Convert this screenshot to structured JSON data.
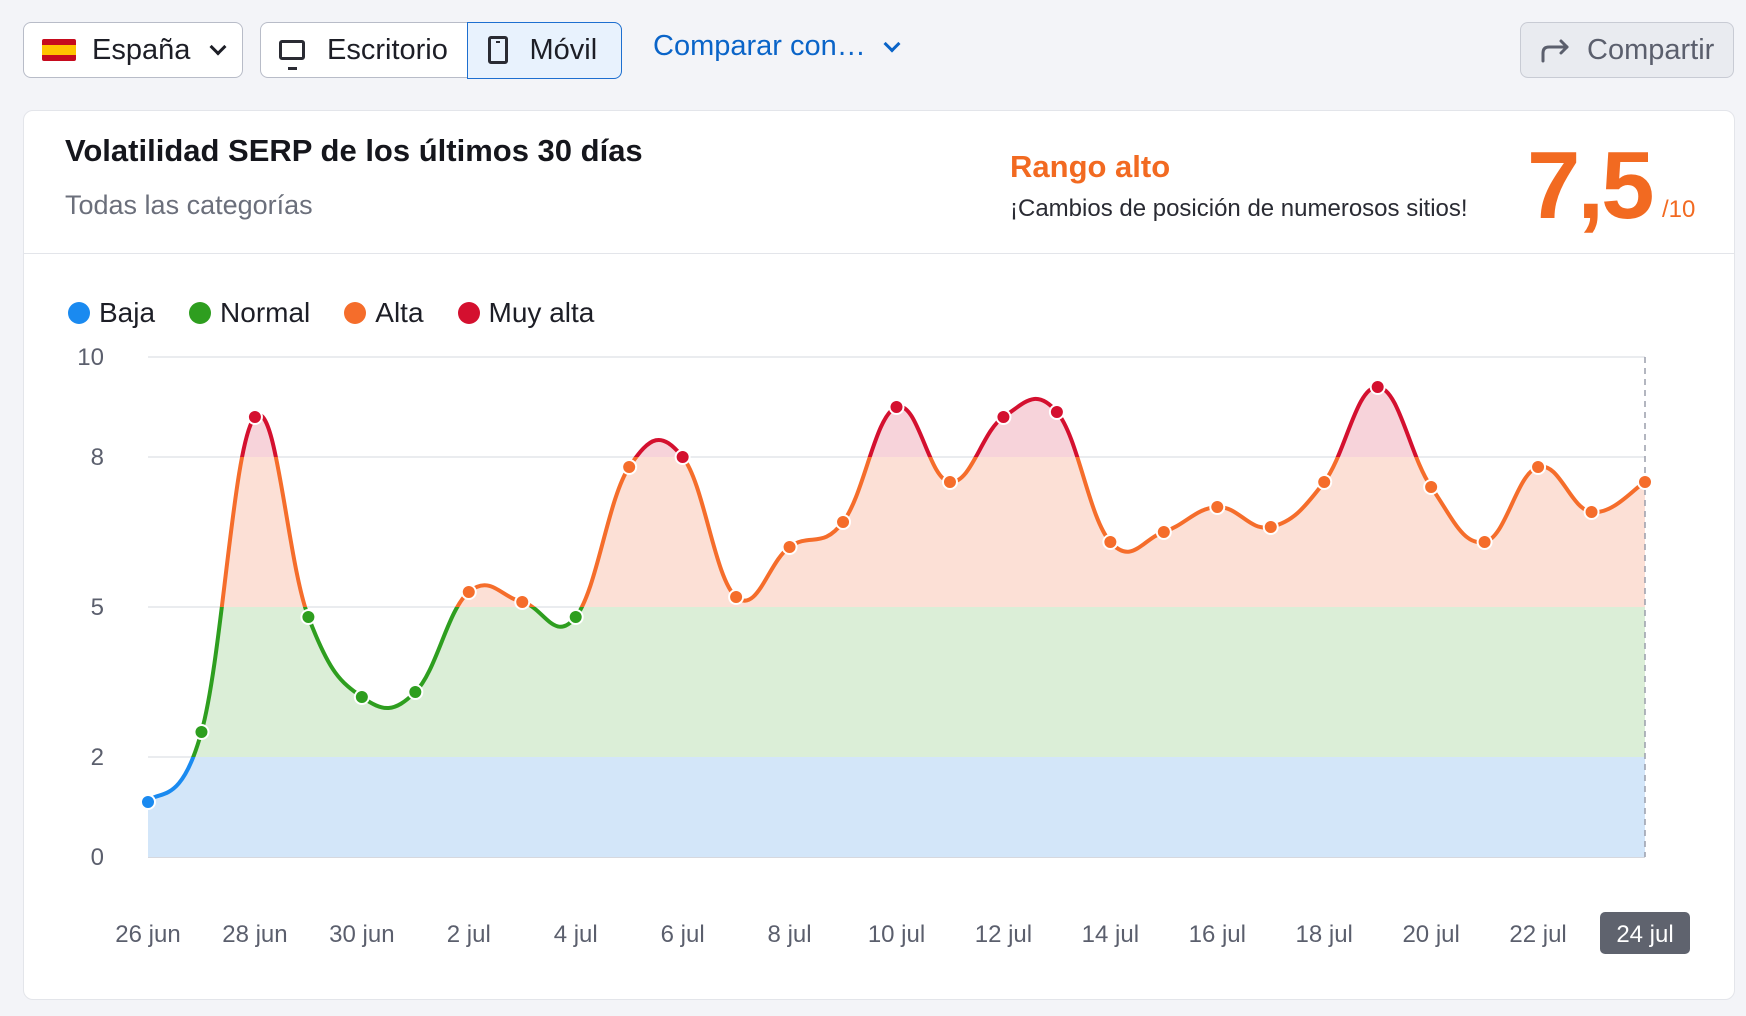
{
  "toolbar": {
    "country": "España",
    "device_desktop": "Escritorio",
    "device_mobile": "Móvil",
    "compare": "Comparar con…",
    "share": "Compartir"
  },
  "card": {
    "title": "Volatilidad SERP de los últimos 30 días",
    "subtitle": "Todas las categorías",
    "range_label": "Rango alto",
    "range_desc": "¡Cambios de posición de numerosos sitios!",
    "score": "7,5",
    "score_max": "/10"
  },
  "legend": [
    {
      "label": "Baja",
      "color": "#1a8af0"
    },
    {
      "label": "Normal",
      "color": "#2e9e1f"
    },
    {
      "label": "Alta",
      "color": "#f56d2b"
    },
    {
      "label": "Muy alta",
      "color": "#d4102f"
    }
  ],
  "chart_data": {
    "type": "line",
    "x_labels": [
      "26 jun",
      "28 jun",
      "30 jun",
      "2 jul",
      "4 jul",
      "6 jul",
      "8 jul",
      "10 jul",
      "12 jul",
      "14 jul",
      "16 jul",
      "18 jul",
      "20 jul",
      "22 jul",
      "24 jul"
    ],
    "selected_label": "24 jul",
    "y_ticks": [
      0,
      2,
      5,
      8,
      10
    ],
    "ylim": [
      0,
      10
    ],
    "bands": [
      {
        "name": "Baja",
        "from": 0,
        "to": 2,
        "color": "#d3e6f9",
        "line": "#1a8af0"
      },
      {
        "name": "Normal",
        "from": 2,
        "to": 5,
        "color": "#dbeed7",
        "line": "#2e9e1f"
      },
      {
        "name": "Alta",
        "from": 5,
        "to": 8,
        "color": "#fce0d6",
        "line": "#f56d2b"
      },
      {
        "name": "Muy alta",
        "from": 8,
        "to": 10,
        "color": "#f7d3da",
        "line": "#d4102f"
      }
    ],
    "values": [
      1.1,
      2.5,
      8.8,
      4.8,
      3.2,
      3.3,
      5.3,
      5.1,
      4.8,
      7.8,
      8.0,
      5.2,
      6.2,
      6.7,
      9.0,
      7.5,
      8.8,
      8.9,
      6.3,
      6.5,
      7.0,
      6.6,
      7.5,
      9.4,
      7.4,
      6.3,
      7.8,
      6.9,
      7.5
    ]
  }
}
